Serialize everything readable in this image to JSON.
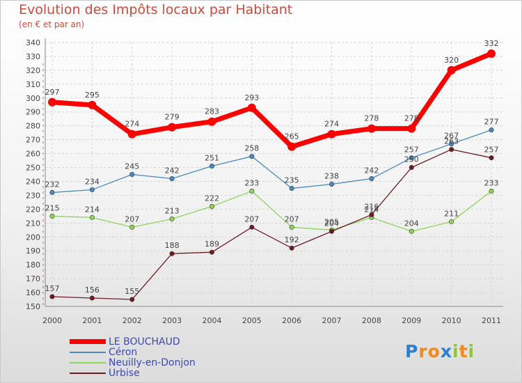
{
  "chart_data": {
    "type": "line",
    "title": "Evolution des Impôts locaux par Habitant",
    "subtitle": "(en € et par an)",
    "categories": [
      "2000",
      "2001",
      "2002",
      "2003",
      "2004",
      "2005",
      "2006",
      "2007",
      "2008",
      "2009",
      "2010",
      "2011"
    ],
    "ylim": [
      150,
      340
    ],
    "yticks": [
      150,
      160,
      170,
      180,
      190,
      200,
      210,
      220,
      230,
      240,
      250,
      260,
      270,
      280,
      290,
      300,
      310,
      320,
      330,
      340
    ],
    "grid": true,
    "legend_position": "bottom-left",
    "series": [
      {
        "name": "LE BOUCHAUD",
        "color": "#ff0000",
        "values": [
          297,
          295,
          274,
          279,
          283,
          293,
          265,
          274,
          278,
          278,
          320,
          332
        ]
      },
      {
        "name": "Céron",
        "color": "#4a8ac4",
        "values": [
          232,
          234,
          245,
          242,
          251,
          258,
          235,
          238,
          242,
          257,
          267,
          277
        ]
      },
      {
        "name": "Neuilly-en-Donjon",
        "color": "#8ed45a",
        "values": [
          215,
          214,
          207,
          213,
          222,
          233,
          207,
          205,
          214,
          204,
          211,
          233
        ]
      },
      {
        "name": "Urbise",
        "color": "#6e1c24",
        "values": [
          157,
          156,
          155,
          188,
          189,
          207,
          192,
          204,
          216,
          250,
          263,
          257
        ]
      }
    ]
  },
  "logo": {
    "letters": [
      "P",
      "r",
      "o",
      "x",
      "i",
      "t",
      "i"
    ],
    "colors": [
      "#2f7fd0",
      "#f08a1e",
      "#f08a1e",
      "#2f7fd0",
      "#8cc63e",
      "#f08a1e",
      "#8cc63e"
    ]
  }
}
